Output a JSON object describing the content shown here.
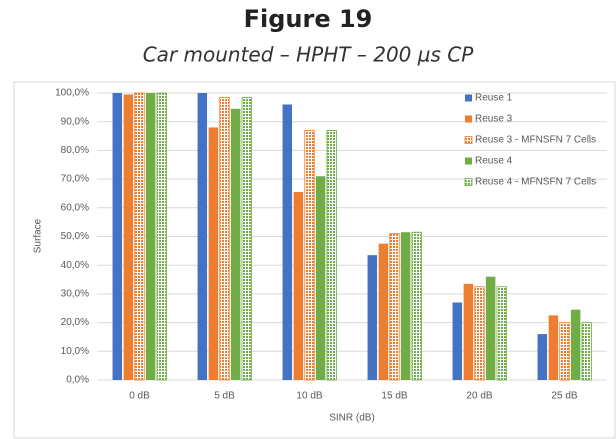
{
  "chart_data": {
    "type": "bar",
    "title": "Figure 19",
    "subtitle": "Car mounted – HPHT – 200 µs CP",
    "x_label": "SINR (dB)",
    "y_label": "Surface",
    "categories": [
      "0 dB",
      "5 dB",
      "10 dB",
      "15 dB",
      "20 dB",
      "25 dB"
    ],
    "series": [
      {
        "name": "Reuse 1",
        "color": "#4472c4",
        "hatch": false,
        "values": [
          100,
          100,
          96,
          43.5,
          27,
          16
        ]
      },
      {
        "name": "Reuse 3",
        "color": "#ed7d31",
        "hatch": false,
        "values": [
          99.5,
          88,
          65.5,
          47.5,
          33.5,
          22.5
        ]
      },
      {
        "name": "Reuse 3 - MFNSFN 7 Cells",
        "color": "#ed7d31",
        "hatch": true,
        "values": [
          100,
          98.5,
          87,
          51,
          32.5,
          20
        ]
      },
      {
        "name": "Reuse 4",
        "color": "#70ad47",
        "hatch": false,
        "values": [
          100,
          94.5,
          71,
          51.5,
          36,
          24.5
        ]
      },
      {
        "name": "Reuse 4 - MFNSFN 7 Cells",
        "color": "#70ad47",
        "hatch": true,
        "values": [
          100,
          98.5,
          87,
          51.5,
          32.5,
          20
        ]
      }
    ],
    "ylim": [
      0,
      100
    ],
    "yticks": [
      {
        "value": 0,
        "label": "0,0%"
      },
      {
        "value": 10,
        "label": "10,0%"
      },
      {
        "value": 20,
        "label": "20,0%"
      },
      {
        "value": 30,
        "label": "30,0%"
      },
      {
        "value": 40,
        "label": "40,0%"
      },
      {
        "value": 50,
        "label": "50,0%"
      },
      {
        "value": 60,
        "label": "60,0%"
      },
      {
        "value": 70,
        "label": "70,0%"
      },
      {
        "value": 80,
        "label": "80,0%"
      },
      {
        "value": 90,
        "label": "90,0%"
      },
      {
        "value": 100,
        "label": "100,0%"
      }
    ],
    "grid": true,
    "legend": "top-right"
  }
}
